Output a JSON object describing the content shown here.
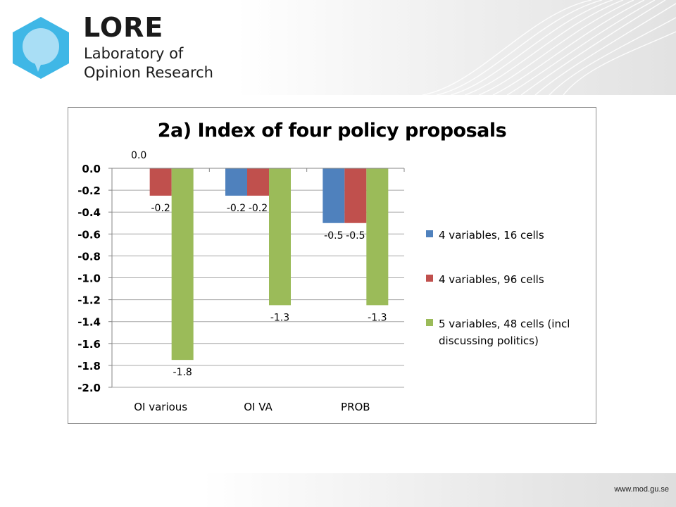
{
  "brand": {
    "name": "LORE",
    "line1": "Laboratory of",
    "line2": "Opinion Research"
  },
  "footer": {
    "url": "www.mod.gu.se"
  },
  "colors": {
    "series1": "#4f81bd",
    "series2": "#c0504d",
    "series3": "#9bbb59",
    "logo_cyan": "#3fb7e6",
    "logo_light": "#a9def5"
  },
  "chart_data": {
    "type": "bar",
    "title": "2a) Index of four policy proposals",
    "categories": [
      "OI various",
      "OI VA",
      "PROB"
    ],
    "series": [
      {
        "name": "4 variables, 16 cells",
        "values": [
          0.0,
          -0.25,
          -0.5
        ],
        "labels": [
          "0.0",
          "-0.2",
          "-0.5"
        ]
      },
      {
        "name": "4 variables, 96 cells",
        "values": [
          -0.25,
          -0.25,
          -0.5
        ],
        "labels": [
          "-0.2",
          "-0.2",
          "-0.5"
        ]
      },
      {
        "name": "5 variables, 48 cells (incl discussing politics)",
        "values": [
          -1.75,
          -1.25,
          -1.25
        ],
        "labels": [
          "-1.8",
          "-1.3",
          "-1.3"
        ]
      }
    ],
    "ylim": [
      -2.0,
      0.0
    ],
    "yticks": [
      "0.0",
      "-0.2",
      "-0.4",
      "-0.6",
      "-0.8",
      "-1.0",
      "-1.2",
      "-1.4",
      "-1.6",
      "-1.8",
      "-2.0"
    ],
    "grid": true,
    "legend": "right"
  }
}
